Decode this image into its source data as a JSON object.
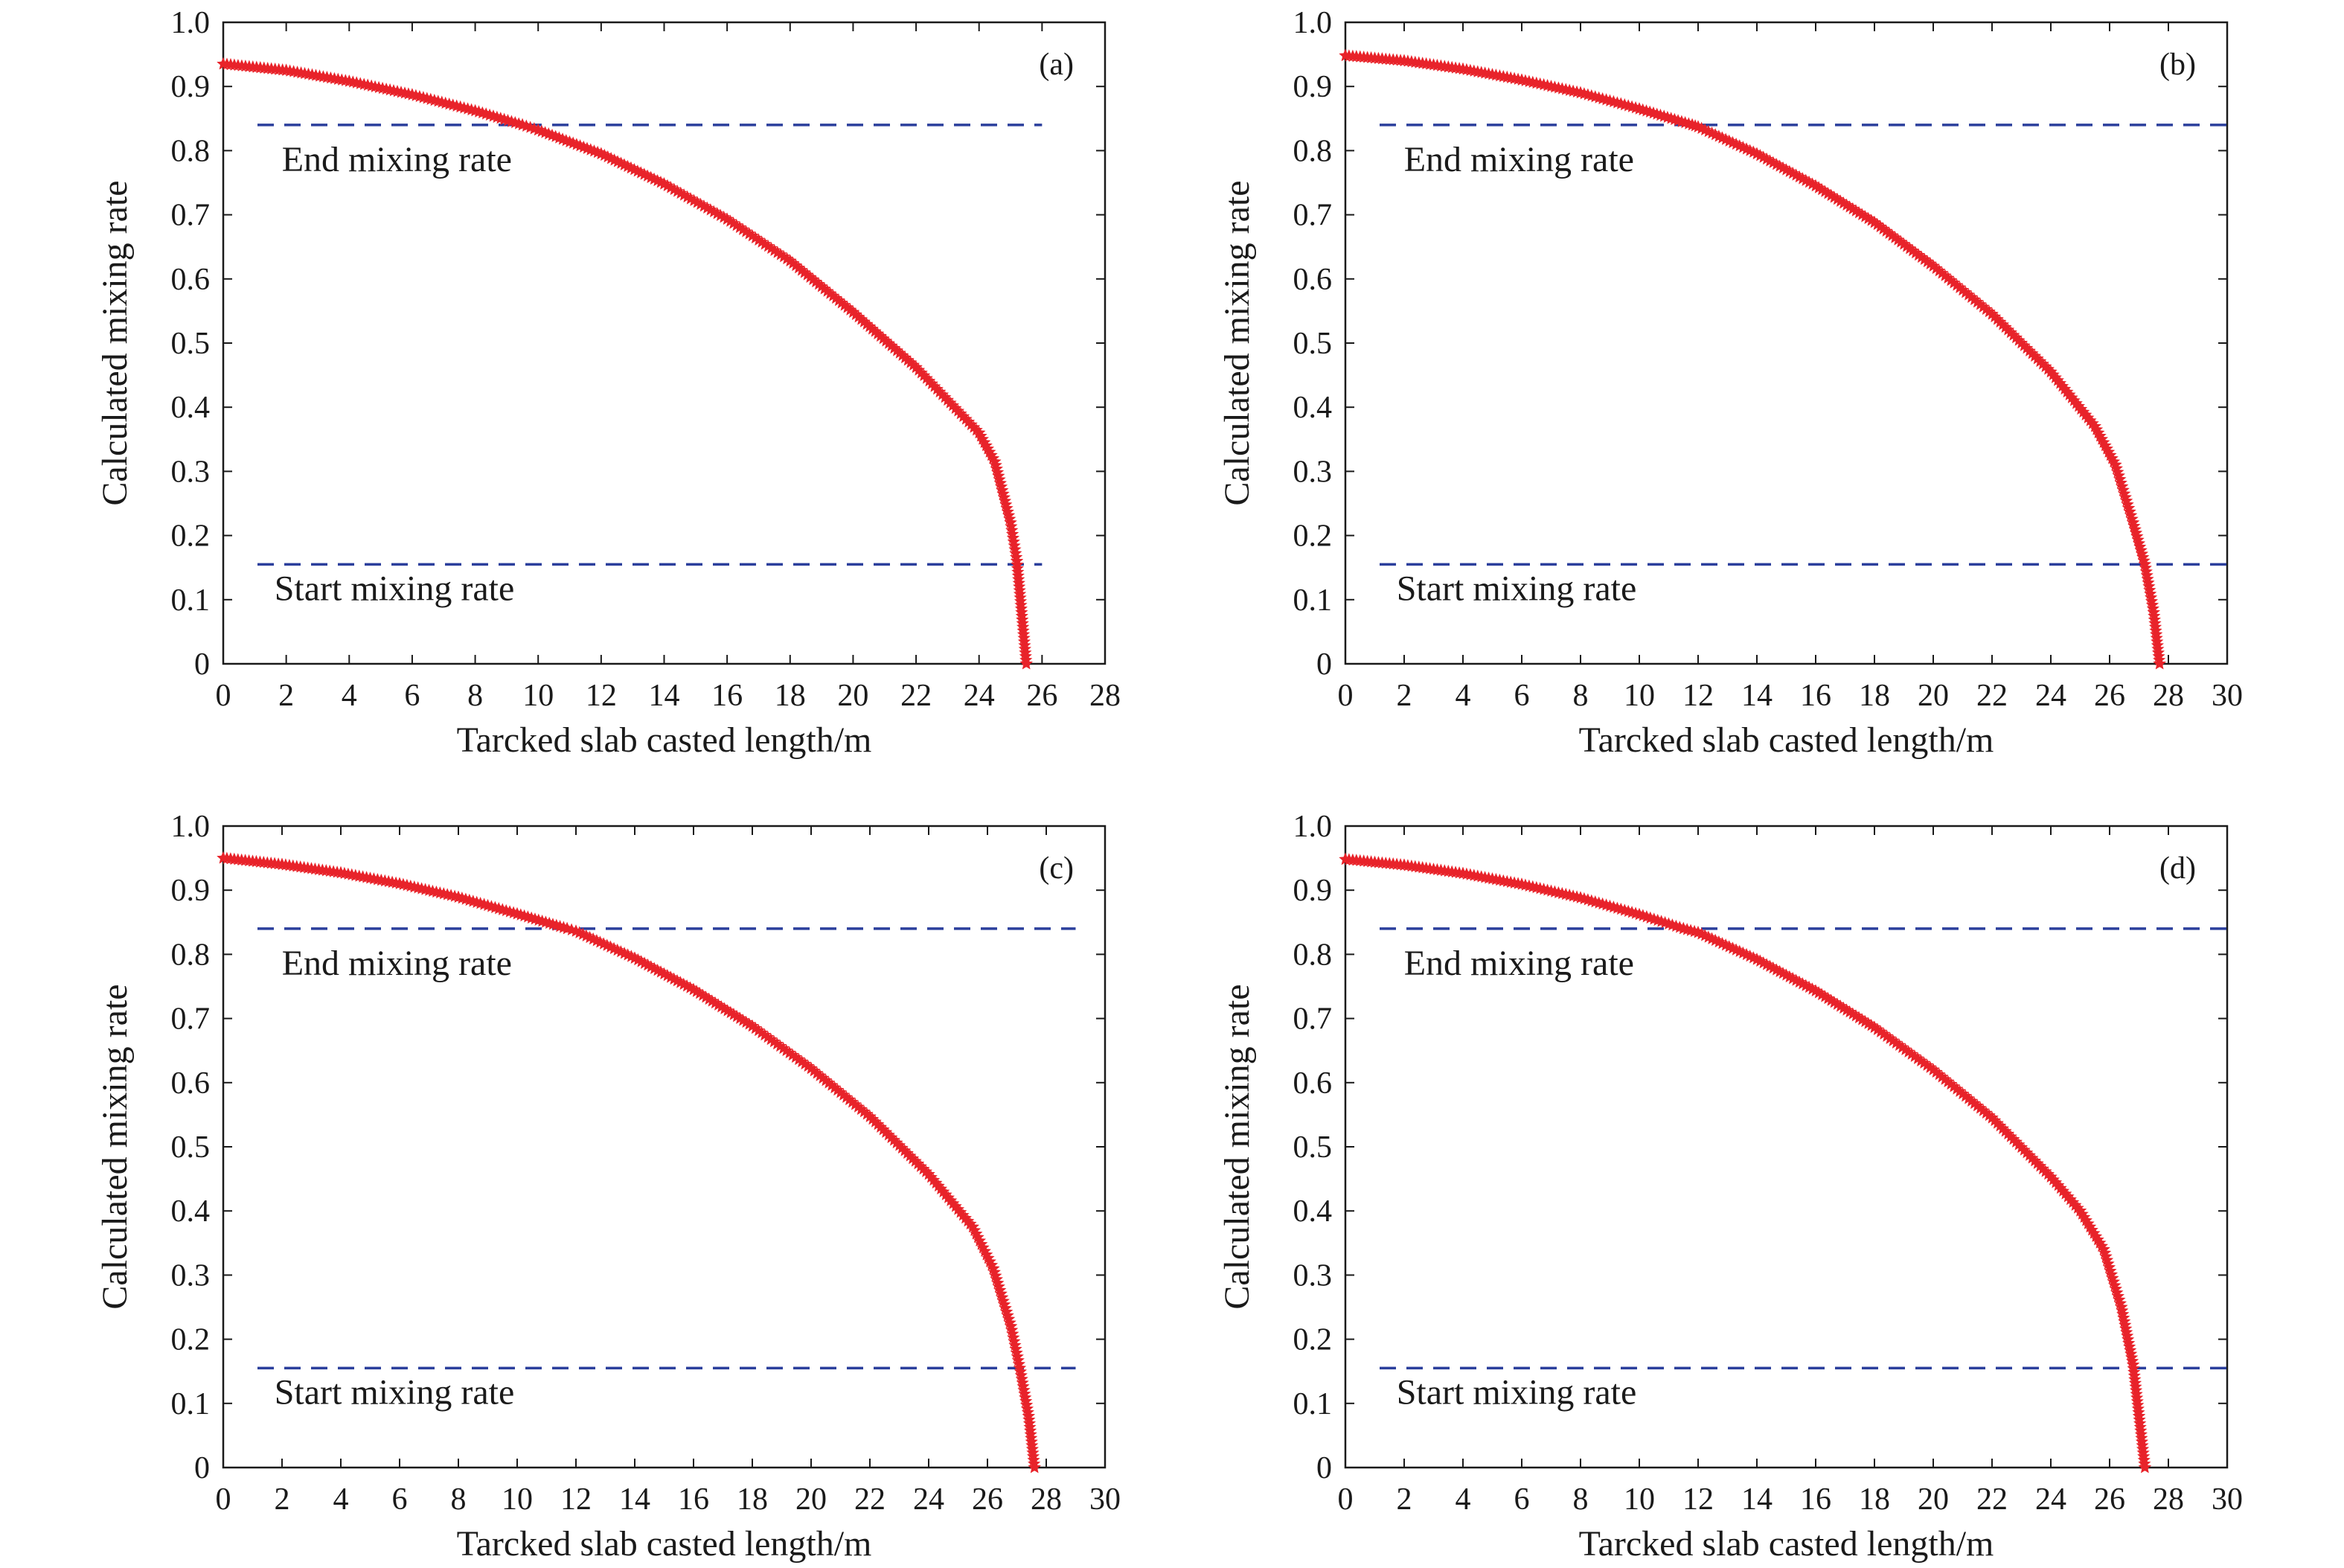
{
  "colors": {
    "curve": "#e8232a",
    "threshold_lines": "#2b3f9c",
    "axes": "#1a1a1a",
    "background": "#ffffff"
  },
  "chart_data": [
    {
      "type": "scatter",
      "panel_label": "(a)",
      "xlabel": "Tarcked slab casted length/m",
      "ylabel": "Calculated mixing rate",
      "xlim": [
        0,
        28
      ],
      "ylim": [
        0,
        1.0
      ],
      "x_ticks": [
        "0",
        "2",
        "4",
        "6",
        "8",
        "10",
        "12",
        "14",
        "16",
        "18",
        "20",
        "22",
        "24",
        "26",
        "28"
      ],
      "y_ticks": [
        "0",
        "0.1",
        "0.2",
        "0.3",
        "0.4",
        "0.5",
        "0.6",
        "0.7",
        "0.8",
        "0.9",
        "1.0"
      ],
      "grid": false,
      "marker": "star",
      "series": [
        {
          "x": [
            0,
            2,
            4,
            6,
            8,
            9.5,
            10,
            12,
            14,
            16,
            18,
            20,
            22,
            24,
            24.5,
            25,
            25.2,
            25.5
          ],
          "y": [
            0.935,
            0.925,
            0.908,
            0.887,
            0.862,
            0.84,
            0.832,
            0.795,
            0.748,
            0.693,
            0.628,
            0.548,
            0.462,
            0.36,
            0.315,
            0.22,
            0.16,
            0.0
          ]
        }
      ],
      "reference_lines": [
        {
          "label": "End mixing rate",
          "y": 0.84,
          "x_range": [
            0,
            26
          ]
        },
        {
          "label": "Start mixing rate",
          "y": 0.155,
          "x_range": [
            0,
            26
          ]
        }
      ]
    },
    {
      "type": "scatter",
      "panel_label": "(b)",
      "xlabel": "Tarcked slab casted length/m",
      "ylabel": "Calculated mixing rate",
      "xlim": [
        0,
        30
      ],
      "ylim": [
        0,
        1.0
      ],
      "x_ticks": [
        "0",
        "2",
        "4",
        "6",
        "8",
        "10",
        "12",
        "14",
        "16",
        "18",
        "20",
        "22",
        "24",
        "26",
        "28",
        "30"
      ],
      "y_ticks": [
        "0",
        "0.1",
        "0.2",
        "0.3",
        "0.4",
        "0.5",
        "0.6",
        "0.7",
        "0.8",
        "0.9",
        "1.0"
      ],
      "grid": false,
      "marker": "star",
      "series": [
        {
          "x": [
            0,
            2,
            4,
            6,
            8,
            10,
            11.8,
            12,
            14,
            16,
            18,
            20,
            22,
            24,
            25.5,
            26.2,
            26.8,
            27.2,
            27.5,
            27.7
          ],
          "y": [
            0.948,
            0.94,
            0.927,
            0.91,
            0.89,
            0.865,
            0.84,
            0.837,
            0.795,
            0.745,
            0.688,
            0.62,
            0.545,
            0.455,
            0.37,
            0.31,
            0.22,
            0.155,
            0.08,
            0.0
          ]
        }
      ],
      "reference_lines": [
        {
          "label": "End mixing rate",
          "y": 0.84,
          "x_range": [
            0,
            30
          ]
        },
        {
          "label": "Start mixing rate",
          "y": 0.155,
          "x_range": [
            0,
            30
          ]
        }
      ]
    },
    {
      "type": "scatter",
      "panel_label": "(c)",
      "xlabel": "Tarcked slab casted length/m",
      "ylabel": "Calculated mixing rate",
      "xlim": [
        0,
        30
      ],
      "ylim": [
        0,
        1.0
      ],
      "x_ticks": [
        "0",
        "2",
        "4",
        "6",
        "8",
        "10",
        "12",
        "14",
        "16",
        "18",
        "20",
        "22",
        "24",
        "26",
        "28",
        "30"
      ],
      "y_ticks": [
        "0",
        "0.1",
        "0.2",
        "0.3",
        "0.4",
        "0.5",
        "0.6",
        "0.7",
        "0.8",
        "0.9",
        "1.0"
      ],
      "grid": false,
      "marker": "star",
      "series": [
        {
          "x": [
            0,
            2,
            4,
            6,
            8,
            10,
            11.7,
            12,
            14,
            16,
            18,
            20,
            22,
            24,
            25.5,
            26.2,
            26.8,
            27.1,
            27.4,
            27.6
          ],
          "y": [
            0.95,
            0.94,
            0.927,
            0.91,
            0.889,
            0.863,
            0.84,
            0.836,
            0.794,
            0.745,
            0.688,
            0.622,
            0.547,
            0.457,
            0.375,
            0.31,
            0.22,
            0.155,
            0.08,
            0.0
          ]
        }
      ],
      "reference_lines": [
        {
          "label": "End mixing rate",
          "y": 0.84,
          "x_range": [
            0,
            29
          ]
        },
        {
          "label": "Start mixing rate",
          "y": 0.155,
          "x_range": [
            0,
            29
          ]
        }
      ]
    },
    {
      "type": "scatter",
      "panel_label": "(d)",
      "xlabel": "Tarcked slab casted length/m",
      "ylabel": "Calculated mixing rate",
      "xlim": [
        0,
        30
      ],
      "ylim": [
        0,
        1.0
      ],
      "x_ticks": [
        "0",
        "2",
        "4",
        "6",
        "8",
        "10",
        "12",
        "14",
        "16",
        "18",
        "20",
        "22",
        "24",
        "26",
        "28",
        "30"
      ],
      "y_ticks": [
        "0",
        "0.1",
        "0.2",
        "0.3",
        "0.4",
        "0.5",
        "0.6",
        "0.7",
        "0.8",
        "0.9",
        "1.0"
      ],
      "grid": false,
      "marker": "star",
      "series": [
        {
          "x": [
            0,
            2,
            4,
            6,
            8,
            10,
            11.5,
            12,
            14,
            16,
            18,
            20,
            22,
            24,
            25,
            25.8,
            26.4,
            26.8,
            27.0,
            27.2
          ],
          "y": [
            0.948,
            0.939,
            0.926,
            0.909,
            0.888,
            0.862,
            0.84,
            0.834,
            0.792,
            0.743,
            0.686,
            0.62,
            0.545,
            0.453,
            0.4,
            0.34,
            0.25,
            0.16,
            0.08,
            0.0
          ]
        }
      ],
      "reference_lines": [
        {
          "label": "End mixing rate",
          "y": 0.84,
          "x_range": [
            0,
            30
          ]
        },
        {
          "label": "Start mixing rate",
          "y": 0.155,
          "x_range": [
            0,
            30
          ]
        }
      ]
    }
  ]
}
